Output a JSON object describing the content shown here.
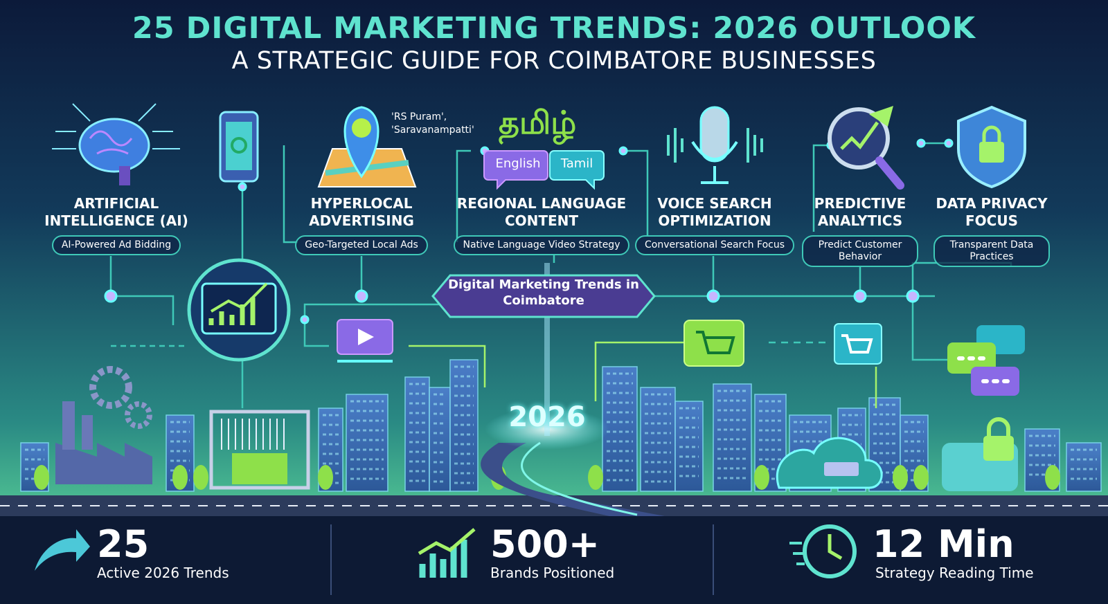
{
  "header": {
    "title": "25 DIGITAL MARKETING TRENDS: 2026 OUTLOOK",
    "subtitle": "A STRATEGIC GUIDE FOR COIMBATORE BUSINESSES"
  },
  "trends": [
    {
      "title": "ARTIFICIAL INTELLIGENCE (AI)",
      "tag": "AI-Powered Ad Bidding"
    },
    {
      "title": "HYPERLOCAL ADVERTISING",
      "tag": "Geo-Targeted Local Ads"
    },
    {
      "title": "REGIONAL LANGUAGE CONTENT",
      "tag": "Native Language Video Strategy"
    },
    {
      "title": "VOICE SEARCH OPTIMIZATION",
      "tag": "Conversational Search Focus"
    },
    {
      "title": "PREDICTIVE ANALYTICS",
      "tag": "Predict Customer Behavior"
    },
    {
      "title": "DATA PRIVACY FOCUS",
      "tag": "Transparent Data Practices"
    }
  ],
  "map_labels": [
    "'RS Puram',",
    "'Saravanampatti'"
  ],
  "language": {
    "script": "தமிழ்",
    "bubbles": [
      "English",
      "Tamil"
    ]
  },
  "hub": "Digital Marketing Trends in Coimbatore",
  "year": "2026",
  "stats": [
    {
      "value": "25",
      "label": "Active 2026 Trends"
    },
    {
      "value": "500+",
      "label": "Brands Positioned"
    },
    {
      "value": "12 Min",
      "label": "Strategy Reading Time"
    }
  ]
}
